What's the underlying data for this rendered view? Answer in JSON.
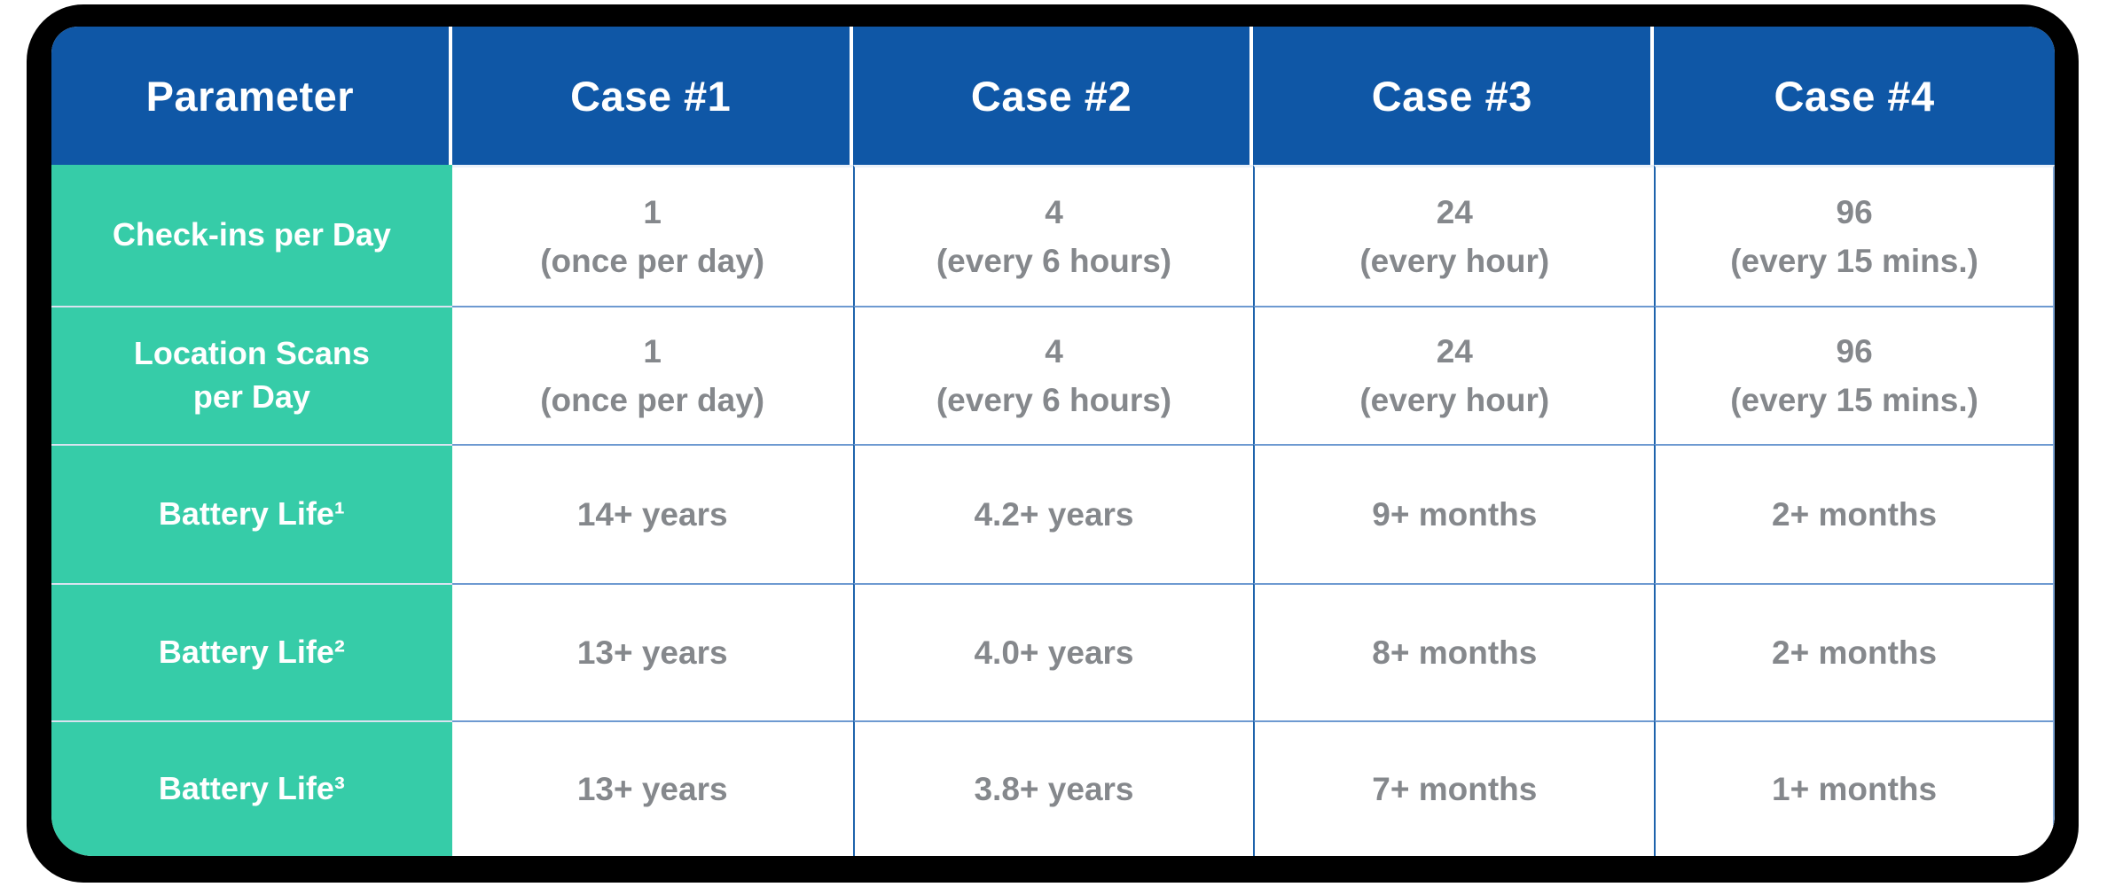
{
  "chart_data": {
    "type": "table",
    "columns": [
      "Parameter",
      "Case #1",
      "Case #2",
      "Case #3",
      "Case #4"
    ],
    "rows": [
      [
        "Check-ins per Day",
        "1 (once per day)",
        "4 (every 6 hours)",
        "24 (every hour)",
        "96 (every 15 mins.)"
      ],
      [
        "Location Scans per Day",
        "1 (once per day)",
        "4 (every 6 hours)",
        "24 (every hour)",
        "96 (every 15 mins.)"
      ],
      [
        "Battery Life¹",
        "14+ years",
        "4.2+ years",
        "9+ months",
        "2+ months"
      ],
      [
        "Battery Life²",
        "13+ years",
        "4.0+ years",
        "8+ months",
        "2+ months"
      ],
      [
        "Battery Life³",
        "13+ years",
        "3.8+ years",
        "7+ months",
        "1+ months"
      ]
    ]
  },
  "header": {
    "col0": "Parameter",
    "col1": "Case #1",
    "col2": "Case #2",
    "col3": "Case #3",
    "col4": "Case #4"
  },
  "rows": [
    {
      "label": [
        "Check-ins per Day"
      ],
      "c1": [
        "1",
        "(once per day)"
      ],
      "c2": [
        "4",
        "(every 6 hours)"
      ],
      "c3": [
        "24",
        "(every hour)"
      ],
      "c4": [
        "96",
        "(every 15 mins.)"
      ]
    },
    {
      "label": [
        "Location Scans",
        "per Day"
      ],
      "c1": [
        "1",
        "(once per day)"
      ],
      "c2": [
        "4",
        "(every 6 hours)"
      ],
      "c3": [
        "24",
        "(every hour)"
      ],
      "c4": [
        "96",
        "(every 15 mins.)"
      ]
    },
    {
      "label": [
        "Battery Life¹"
      ],
      "c1": [
        "14+ years"
      ],
      "c2": [
        "4.2+ years"
      ],
      "c3": [
        "9+ months"
      ],
      "c4": [
        "2+ months"
      ]
    },
    {
      "label": [
        "Battery Life²"
      ],
      "c1": [
        "13+ years"
      ],
      "c2": [
        "4.0+ years"
      ],
      "c3": [
        "8+ months"
      ],
      "c4": [
        "2+ months"
      ]
    },
    {
      "label": [
        "Battery Life³"
      ],
      "c1": [
        "13+ years"
      ],
      "c2": [
        "3.8+ years"
      ],
      "c3": [
        "7+ months"
      ],
      "c4": [
        "1+ months"
      ]
    }
  ],
  "colors": {
    "header_bg": "#0F57A6",
    "row_label_bg": "#36CCA8",
    "header_text": "#FFFFFF",
    "label_text": "#FFFFFF",
    "value_text": "#85888C",
    "vertical_divider": "#1E63AC",
    "horizontal_divider": "#6E9AD1",
    "label_divider": "#D9E3F0",
    "frame": "#000000",
    "cell_bg": "#FFFFFF"
  }
}
